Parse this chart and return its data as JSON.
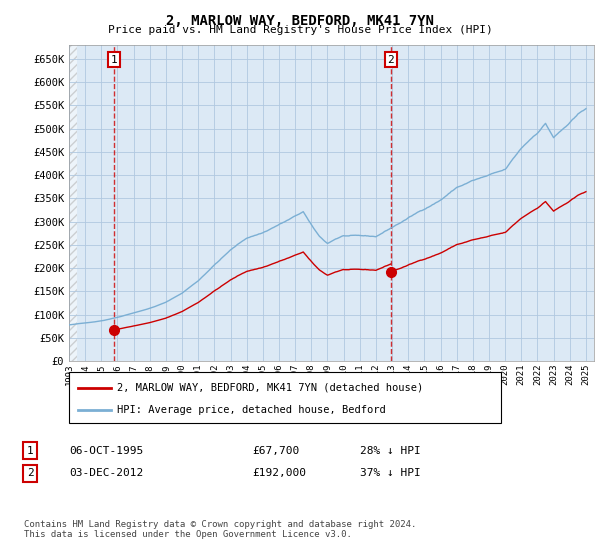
{
  "title": "2, MARLOW WAY, BEDFORD, MK41 7YN",
  "subtitle": "Price paid vs. HM Land Registry's House Price Index (HPI)",
  "ylabel_ticks": [
    "£0",
    "£50K",
    "£100K",
    "£150K",
    "£200K",
    "£250K",
    "£300K",
    "£350K",
    "£400K",
    "£450K",
    "£500K",
    "£550K",
    "£600K",
    "£650K"
  ],
  "ytick_values": [
    0,
    50000,
    100000,
    150000,
    200000,
    250000,
    300000,
    350000,
    400000,
    450000,
    500000,
    550000,
    600000,
    650000
  ],
  "hpi_color": "#7bafd4",
  "price_color": "#cc0000",
  "bg_color": "#dce9f5",
  "grid_color": "#b0c8e0",
  "purchase1_date": 1995.79,
  "purchase1_price": 67700,
  "purchase2_date": 2012.92,
  "purchase2_price": 192000,
  "legend_house_label": "2, MARLOW WAY, BEDFORD, MK41 7YN (detached house)",
  "legend_hpi_label": "HPI: Average price, detached house, Bedford",
  "table_row1": [
    "1",
    "06-OCT-1995",
    "£67,700",
    "28% ↓ HPI"
  ],
  "table_row2": [
    "2",
    "03-DEC-2012",
    "£192,000",
    "37% ↓ HPI"
  ],
  "footnote": "Contains HM Land Registry data © Crown copyright and database right 2024.\nThis data is licensed under the Open Government Licence v3.0.",
  "xlim": [
    1993.0,
    2025.5
  ],
  "ylim": [
    0,
    680000
  ]
}
